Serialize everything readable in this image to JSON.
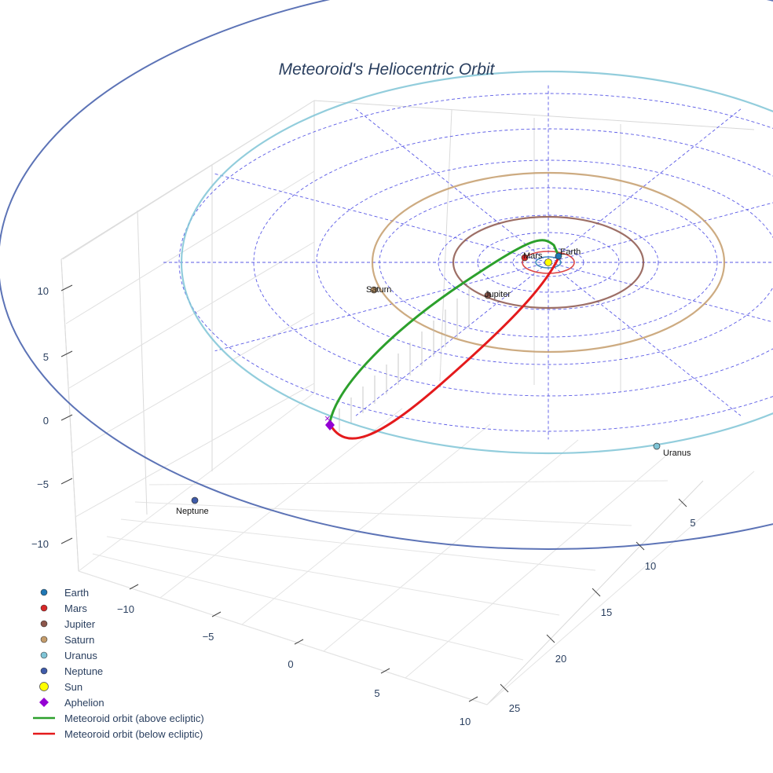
{
  "chart_data": {
    "type": "scatter3d",
    "title": "Meteoroid's Heliocentric Orbit",
    "xaxis": {
      "ticks": [
        "−10",
        "−5",
        "0",
        "5",
        "10"
      ]
    },
    "yaxis": {
      "ticks": [
        "5",
        "10",
        "15",
        "20",
        "25"
      ]
    },
    "zaxis": {
      "ticks": [
        "10",
        "5",
        "0",
        "−5",
        "−10"
      ]
    },
    "planets": [
      {
        "name": "Earth",
        "orbit_radius_au": 1.0,
        "color": "#1f77b4"
      },
      {
        "name": "Mars",
        "orbit_radius_au": 1.52,
        "color": "#d62728"
      },
      {
        "name": "Jupiter",
        "orbit_radius_au": 5.2,
        "color": "#8c564b"
      },
      {
        "name": "Saturn",
        "orbit_radius_au": 9.54,
        "color": "#c49c6b"
      },
      {
        "name": "Uranus",
        "orbit_radius_au": 19.2,
        "color": "#7fc4d6"
      },
      {
        "name": "Neptune",
        "orbit_radius_au": 30.06,
        "color": "#3f5ba9"
      }
    ],
    "sun": {
      "name": "Sun",
      "color": "#ffff00"
    },
    "aphelion": {
      "name": "Aphelion",
      "color": "#9400d3"
    },
    "meteoroid_orbit": [
      {
        "name": "Meteoroid orbit (above ecliptic)",
        "color": "#2ca02c"
      },
      {
        "name": "Meteoroid orbit (below ecliptic)",
        "color": "#e41a1c"
      }
    ],
    "legend": [
      "Earth",
      "Mars",
      "Jupiter",
      "Saturn",
      "Uranus",
      "Neptune",
      "Sun",
      "Aphelion",
      "Meteoroid orbit (above ecliptic)",
      "Meteoroid orbit (below ecliptic)"
    ]
  }
}
